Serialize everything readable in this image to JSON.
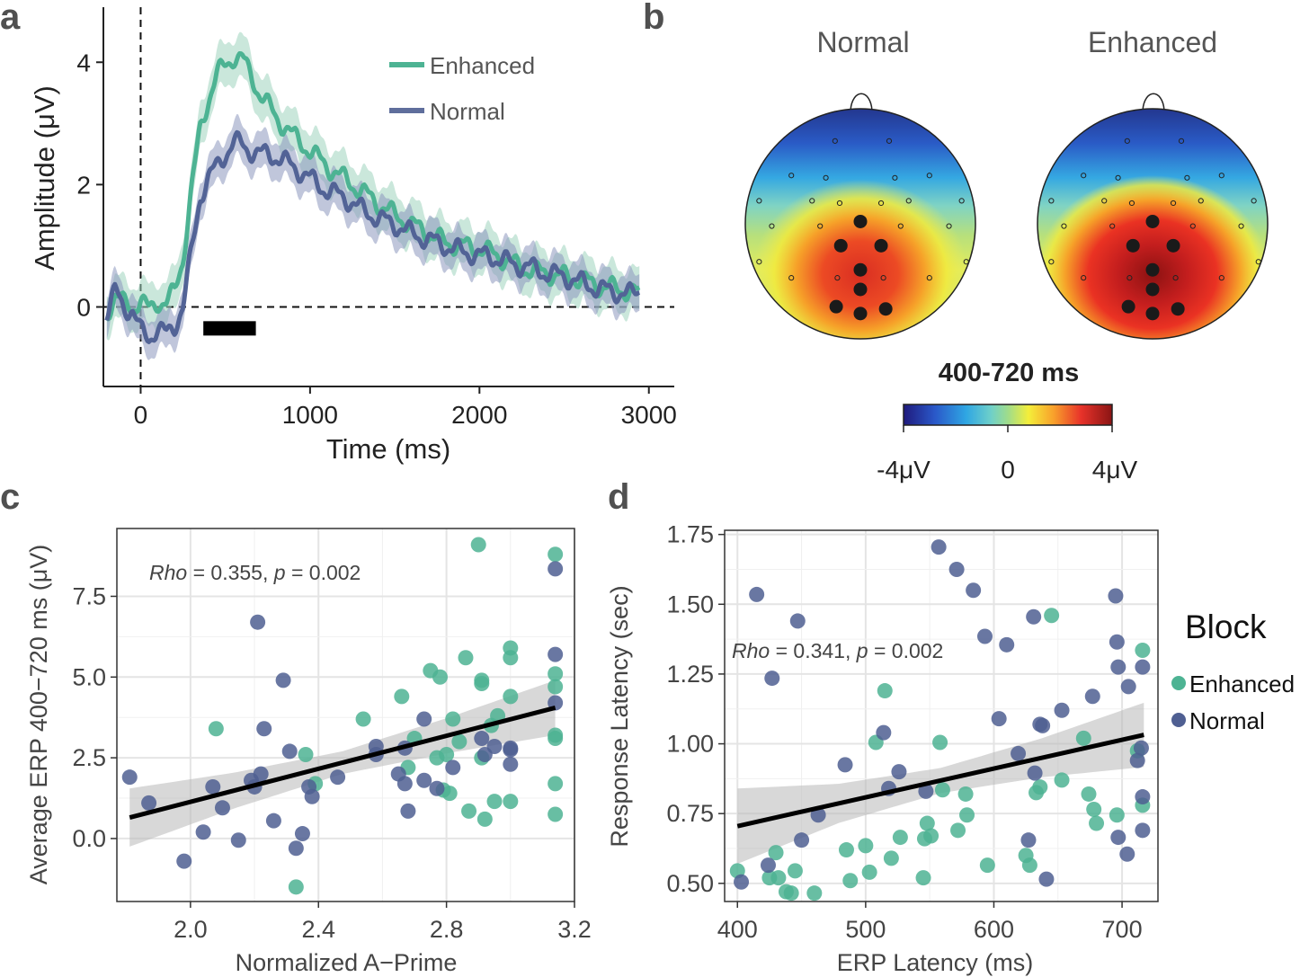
{
  "colors": {
    "enhanced": "#4db393",
    "normal": "#4f5f92",
    "band": "#b8b8b8",
    "axis": "#222222",
    "grid": "#e4e4e4",
    "panel_border": "#333333"
  },
  "panels": {
    "a": {
      "label": "a"
    },
    "b": {
      "label": "b"
    },
    "c": {
      "label": "c"
    },
    "d": {
      "label": "d"
    }
  },
  "chart_data": [
    {
      "id": "a",
      "type": "line",
      "xlabel": "Time (ms)",
      "ylabel": "Amplitude (μV)",
      "xlim": [
        -220,
        3150
      ],
      "ylim": [
        -1.3,
        4.9
      ],
      "xticks": [
        0,
        1000,
        2000,
        3000
      ],
      "xtick_labels": [
        "0",
        "1000",
        "2000",
        "3000"
      ],
      "yticks": [
        0,
        2,
        4
      ],
      "ytick_labels": [
        "0",
        "2",
        "4"
      ],
      "significance_bar": [
        370,
        680
      ],
      "significance_bar_y": -0.35,
      "legend": [
        {
          "name": "Enhanced",
          "color": "#4db393"
        },
        {
          "name": "Normal",
          "color": "#4f5f92"
        }
      ],
      "series": [
        {
          "name": "Enhanced",
          "x": [
            -200,
            -150,
            -100,
            -50,
            0,
            50,
            100,
            150,
            200,
            250,
            300,
            350,
            400,
            450,
            500,
            550,
            600,
            650,
            700,
            750,
            800,
            900,
            1000,
            1100,
            1200,
            1300,
            1400,
            1500,
            1600,
            1700,
            1800,
            1900,
            2000,
            2100,
            2200,
            2300,
            2400,
            2500,
            2600,
            2700,
            2800,
            2900,
            2950
          ],
          "y": [
            -0.1,
            0.2,
            0.05,
            0.0,
            0.1,
            -0.05,
            0.1,
            0.05,
            0.25,
            0.8,
            1.9,
            2.9,
            3.4,
            3.8,
            3.95,
            4.1,
            4.05,
            3.8,
            3.5,
            3.3,
            3.1,
            2.8,
            2.55,
            2.3,
            2.1,
            1.9,
            1.7,
            1.5,
            1.35,
            1.2,
            1.05,
            1.0,
            0.95,
            0.85,
            0.7,
            0.6,
            0.55,
            0.5,
            0.45,
            0.35,
            0.3,
            0.25,
            0.2
          ],
          "band": 0.35
        },
        {
          "name": "Normal",
          "x": [
            -200,
            -150,
            -100,
            -50,
            0,
            50,
            100,
            150,
            200,
            250,
            300,
            350,
            400,
            450,
            500,
            550,
            600,
            650,
            700,
            750,
            800,
            900,
            1000,
            1100,
            1200,
            1300,
            1400,
            1500,
            1600,
            1700,
            1800,
            1900,
            2000,
            2100,
            2200,
            2300,
            2400,
            2500,
            2600,
            2700,
            2800,
            2900,
            2950
          ],
          "y": [
            -0.1,
            0.25,
            0.0,
            -0.05,
            -0.4,
            -0.5,
            -0.35,
            -0.45,
            -0.3,
            0.0,
            0.9,
            1.8,
            2.1,
            2.3,
            2.5,
            2.7,
            2.65,
            2.55,
            2.5,
            2.5,
            2.45,
            2.3,
            2.1,
            1.9,
            1.8,
            1.6,
            1.45,
            1.35,
            1.2,
            1.1,
            1.0,
            0.9,
            0.85,
            0.8,
            0.7,
            0.65,
            0.55,
            0.5,
            0.4,
            0.3,
            0.25,
            0.2,
            0.3
          ],
          "band": 0.3
        }
      ]
    },
    {
      "id": "b",
      "type": "heatmap",
      "subtitle": "400-720 ms",
      "maps": [
        {
          "title": "Normal",
          "peak_uV": 3.0,
          "center_x": 0.0,
          "center_y": 0.3
        },
        {
          "title": "Enhanced",
          "peak_uV": 4.0,
          "center_x": 0.0,
          "center_y": 0.3
        }
      ],
      "colorbar": {
        "min_label": "-4μV",
        "mid_label": "0",
        "max_label": "4μV",
        "min": -4,
        "max": 4
      },
      "highlighted_electrodes": 8
    },
    {
      "id": "c",
      "type": "scatter",
      "xlabel": "Normalized A−Prime",
      "ylabel": "Average ERP 400−720 ms (μV)",
      "annotation": {
        "stat_name": "Rho",
        "stat_value": " = 0.355, ",
        "p_name": "p",
        "p_value": " = 0.002"
      },
      "xlim": [
        1.77,
        3.2
      ],
      "ylim": [
        -1.95,
        9.6
      ],
      "xticks": [
        2.0,
        2.4,
        2.8,
        3.2
      ],
      "xtick_labels": [
        "2.0",
        "2.4",
        "2.8",
        "3.2"
      ],
      "yticks": [
        0.0,
        2.5,
        5.0,
        7.5
      ],
      "ytick_labels": [
        "0.0",
        "2.5",
        "5.0",
        "7.5"
      ],
      "fit": {
        "x": [
          1.81,
          3.14
        ],
        "y": [
          0.65,
          4.05
        ]
      },
      "band_width": [
        0.9,
        0.55,
        0.35,
        0.55,
        0.85
      ],
      "series": [
        {
          "name": "Enhanced",
          "points": [
            [
              2.08,
              3.4
            ],
            [
              2.33,
              -1.5
            ],
            [
              2.36,
              2.6
            ],
            [
              2.39,
              1.7
            ],
            [
              2.54,
              3.7
            ],
            [
              2.66,
              4.4
            ],
            [
              2.68,
              2.2
            ],
            [
              2.7,
              3.1
            ],
            [
              2.75,
              5.2
            ],
            [
              2.77,
              2.5
            ],
            [
              2.78,
              5.0
            ],
            [
              2.79,
              1.5
            ],
            [
              2.8,
              2.6
            ],
            [
              2.81,
              1.4
            ],
            [
              2.82,
              3.7
            ],
            [
              2.84,
              3.0
            ],
            [
              2.86,
              5.6
            ],
            [
              2.87,
              0.85
            ],
            [
              2.9,
              9.1
            ],
            [
              2.91,
              4.9
            ],
            [
              2.91,
              4.8
            ],
            [
              2.91,
              2.5
            ],
            [
              2.92,
              0.6
            ],
            [
              2.94,
              3.5
            ],
            [
              2.95,
              1.15
            ],
            [
              2.96,
              3.8
            ],
            [
              3.0,
              5.9
            ],
            [
              3.0,
              5.6
            ],
            [
              3.0,
              4.4
            ],
            [
              3.0,
              1.15
            ],
            [
              3.14,
              8.8
            ],
            [
              3.14,
              5.1
            ],
            [
              3.14,
              4.7
            ],
            [
              3.14,
              3.2
            ],
            [
              3.14,
              3.1
            ],
            [
              3.14,
              1.7
            ],
            [
              3.14,
              0.75
            ]
          ]
        },
        {
          "name": "Normal",
          "points": [
            [
              1.81,
              1.9
            ],
            [
              1.87,
              1.1
            ],
            [
              1.98,
              -0.7
            ],
            [
              2.04,
              0.2
            ],
            [
              2.07,
              1.6
            ],
            [
              2.1,
              0.95
            ],
            [
              2.15,
              -0.05
            ],
            [
              2.19,
              1.8
            ],
            [
              2.2,
              1.6
            ],
            [
              2.21,
              6.7
            ],
            [
              2.22,
              2.0
            ],
            [
              2.23,
              3.4
            ],
            [
              2.26,
              0.55
            ],
            [
              2.29,
              4.9
            ],
            [
              2.31,
              2.7
            ],
            [
              2.33,
              -0.3
            ],
            [
              2.35,
              0.15
            ],
            [
              2.37,
              1.6
            ],
            [
              2.38,
              1.3
            ],
            [
              2.46,
              1.9
            ],
            [
              2.58,
              2.85
            ],
            [
              2.58,
              2.6
            ],
            [
              2.65,
              2.0
            ],
            [
              2.67,
              2.8
            ],
            [
              2.67,
              1.7
            ],
            [
              2.68,
              0.85
            ],
            [
              2.73,
              3.7
            ],
            [
              2.73,
              1.8
            ],
            [
              2.77,
              1.55
            ],
            [
              2.82,
              2.2
            ],
            [
              2.91,
              3.1
            ],
            [
              2.92,
              2.6
            ],
            [
              2.95,
              2.85
            ],
            [
              3.0,
              2.8
            ],
            [
              3.0,
              2.75
            ],
            [
              3.0,
              2.3
            ],
            [
              3.14,
              8.35
            ],
            [
              3.14,
              5.7
            ],
            [
              3.14,
              4.2
            ]
          ]
        }
      ]
    },
    {
      "id": "d",
      "type": "scatter",
      "xlabel": "ERP Latency (ms)",
      "ylabel": "Response Latency (sec)",
      "annotation": {
        "stat_name": "Rho",
        "stat_value": " = 0.341, ",
        "p_name": "p",
        "p_value": " = 0.002"
      },
      "legend_title": "Block",
      "legend": [
        {
          "name": "Enhanced",
          "color": "#4db393"
        },
        {
          "name": "Normal",
          "color": "#4f5f92"
        }
      ],
      "xlim": [
        390,
        728
      ],
      "ylim": [
        0.435,
        1.765
      ],
      "xticks": [
        400,
        500,
        600,
        700
      ],
      "xtick_labels": [
        "400",
        "500",
        "600",
        "700"
      ],
      "yticks": [
        0.5,
        0.75,
        1.0,
        1.25,
        1.5,
        1.75
      ],
      "ytick_labels": [
        "0.50",
        "0.75",
        "1.00",
        "1.25",
        "1.50",
        "1.75"
      ],
      "fit": {
        "x": [
          400,
          717
        ],
        "y": [
          0.705,
          1.032
        ]
      },
      "band_width": [
        0.135,
        0.07,
        0.045,
        0.07,
        0.115
      ],
      "series": [
        {
          "name": "Enhanced",
          "points": [
            [
              400,
              0.545
            ],
            [
              425,
              0.52
            ],
            [
              430,
              0.61
            ],
            [
              432,
              0.52
            ],
            [
              438,
              0.47
            ],
            [
              442,
              0.465
            ],
            [
              445,
              0.545
            ],
            [
              460,
              0.465
            ],
            [
              485,
              0.62
            ],
            [
              488,
              0.51
            ],
            [
              500,
              0.635
            ],
            [
              503,
              0.54
            ],
            [
              508,
              1.005
            ],
            [
              515,
              1.19
            ],
            [
              520,
              0.59
            ],
            [
              527,
              0.665
            ],
            [
              545,
              0.52
            ],
            [
              546,
              0.66
            ],
            [
              548,
              0.715
            ],
            [
              551,
              0.67
            ],
            [
              558,
              1.005
            ],
            [
              560,
              0.835
            ],
            [
              572,
              0.69
            ],
            [
              578,
              0.82
            ],
            [
              579,
              0.745
            ],
            [
              595,
              0.565
            ],
            [
              625,
              0.6
            ],
            [
              628,
              0.565
            ],
            [
              633,
              0.825
            ],
            [
              636,
              0.845
            ],
            [
              645,
              1.46
            ],
            [
              653,
              0.87
            ],
            [
              670,
              1.02
            ],
            [
              674,
              0.82
            ],
            [
              678,
              0.765
            ],
            [
              680,
              0.715
            ],
            [
              696,
              0.745
            ],
            [
              712,
              0.975
            ],
            [
              716,
              1.335
            ],
            [
              716,
              0.78
            ]
          ]
        },
        {
          "name": "Normal",
          "points": [
            [
              403,
              0.505
            ],
            [
              415,
              1.535
            ],
            [
              424,
              0.565
            ],
            [
              427,
              1.235
            ],
            [
              447,
              1.44
            ],
            [
              450,
              0.655
            ],
            [
              463,
              0.745
            ],
            [
              484,
              0.925
            ],
            [
              514,
              1.04
            ],
            [
              518,
              0.84
            ],
            [
              526,
              0.9
            ],
            [
              547,
              0.83
            ],
            [
              557,
              1.705
            ],
            [
              571,
              1.625
            ],
            [
              584,
              1.55
            ],
            [
              593,
              1.385
            ],
            [
              604,
              1.09
            ],
            [
              610,
              1.355
            ],
            [
              619,
              0.965
            ],
            [
              627,
              0.655
            ],
            [
              631,
              1.455
            ],
            [
              632,
              0.895
            ],
            [
              636,
              1.07
            ],
            [
              638,
              1.065
            ],
            [
              641,
              0.515
            ],
            [
              653,
              1.12
            ],
            [
              677,
              1.17
            ],
            [
              695,
              1.53
            ],
            [
              696,
              1.365
            ],
            [
              697,
              1.275
            ],
            [
              697,
              0.665
            ],
            [
              704,
              0.605
            ],
            [
              705,
              1.205
            ],
            [
              712,
              0.94
            ],
            [
              715,
              0.985
            ],
            [
              716,
              1.275
            ],
            [
              716,
              0.81
            ],
            [
              716,
              0.69
            ]
          ]
        }
      ]
    }
  ]
}
